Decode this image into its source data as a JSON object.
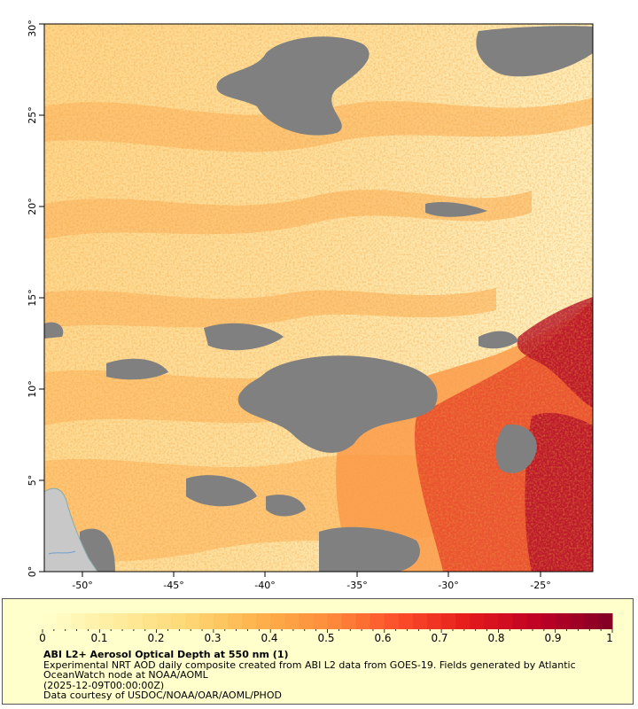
{
  "map": {
    "lon_ticks": [
      "-50°",
      "-45°",
      "-40°",
      "-35°",
      "-30°",
      "-25°"
    ],
    "lat_ticks": [
      "0°",
      "5°",
      "10°",
      "15°",
      "20°",
      "25°",
      "30°"
    ],
    "colors": {
      "no_data": "#808080",
      "land": "#c8c8c8",
      "river": "#6fa0d0"
    },
    "regions": [
      "sahara-dust-plume",
      "itcz-cloud-gap",
      "south-american-coast"
    ]
  },
  "legend": {
    "ticks": [
      "0",
      "0.1",
      "0.2",
      "0.3",
      "0.4",
      "0.5",
      "0.6",
      "0.7",
      "0.8",
      "0.9",
      "1"
    ],
    "colors": [
      "#ffffcc",
      "#ffeda0",
      "#fed976",
      "#feb24c",
      "#fd8d3c",
      "#fc4e2a",
      "#e31a1c",
      "#bd0026",
      "#800026"
    ],
    "title": "ABI L2+ Aerosol Optical Depth at 550 nm (1)",
    "description": "Experimental NRT AOD daily composite created from ABI L2 data from GOES-19. Fields generated by Atlantic OceanWatch node at NOAA/AOML",
    "timestamp": "(2025-12-09T00:00:00Z)",
    "credit": "Data courtesy of USDOC/NOAA/OAR/AOML/PHOD"
  }
}
